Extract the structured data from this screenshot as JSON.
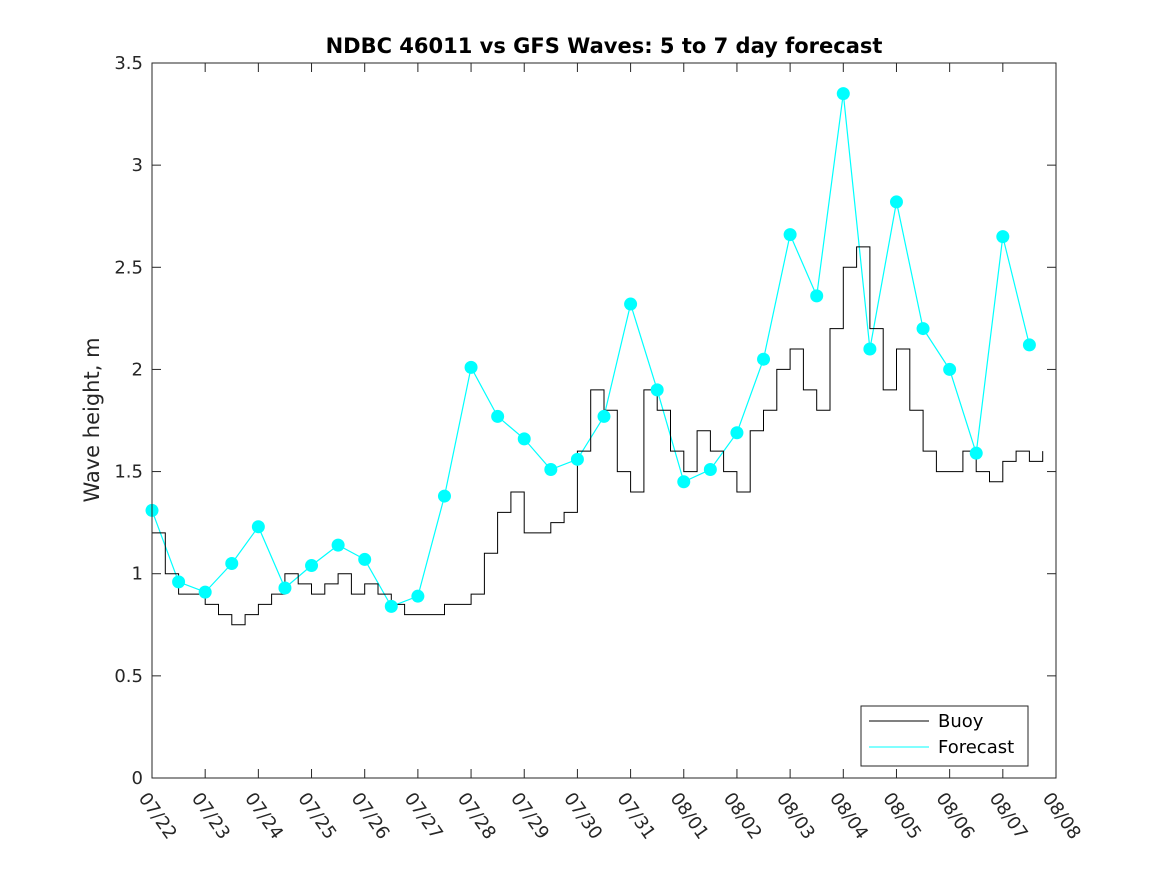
{
  "chart_data": {
    "type": "line",
    "title": "NDBC 46011 vs GFS Waves: 5 to 7 day forecast",
    "xlabel": "",
    "ylabel": "Wave height, m",
    "xlim": [
      "07/22",
      "08/08"
    ],
    "ylim": [
      0,
      3.5
    ],
    "x_ticks": [
      "07/22",
      "07/23",
      "07/24",
      "07/25",
      "07/26",
      "07/27",
      "07/28",
      "07/29",
      "07/30",
      "07/31",
      "08/01",
      "08/02",
      "08/03",
      "08/04",
      "08/05",
      "08/06",
      "08/07",
      "08/08"
    ],
    "y_ticks": [
      0,
      0.5,
      1,
      1.5,
      2,
      2.5,
      3,
      3.5
    ],
    "y_tick_labels": [
      "0",
      "0.5",
      "1",
      "1.5",
      "2",
      "2.5",
      "3",
      "3.5"
    ],
    "grid": false,
    "legend_position": "bottom-right",
    "colors": {
      "buoy": "#000000",
      "forecast": "#00ffff",
      "axes": "#262626"
    },
    "series": [
      {
        "name": "Buoy",
        "style": "line",
        "x": [
          "07/22 00:00",
          "07/22 06:00",
          "07/22 12:00",
          "07/22 18:00",
          "07/23 00:00",
          "07/23 06:00",
          "07/23 12:00",
          "07/23 18:00",
          "07/24 00:00",
          "07/24 06:00",
          "07/24 12:00",
          "07/24 18:00",
          "07/25 00:00",
          "07/25 06:00",
          "07/25 12:00",
          "07/25 18:00",
          "07/26 00:00",
          "07/26 06:00",
          "07/26 12:00",
          "07/26 18:00",
          "07/27 00:00",
          "07/27 06:00",
          "07/27 12:00",
          "07/27 18:00",
          "07/28 00:00",
          "07/28 06:00",
          "07/28 12:00",
          "07/28 18:00",
          "07/29 00:00",
          "07/29 06:00",
          "07/29 12:00",
          "07/29 18:00",
          "07/30 00:00",
          "07/30 06:00",
          "07/30 12:00",
          "07/30 18:00",
          "07/31 00:00",
          "07/31 06:00",
          "07/31 12:00",
          "07/31 18:00",
          "08/01 00:00",
          "08/01 06:00",
          "08/01 12:00",
          "08/01 18:00",
          "08/02 00:00",
          "08/02 06:00",
          "08/02 12:00",
          "08/02 18:00",
          "08/03 00:00",
          "08/03 06:00",
          "08/03 12:00",
          "08/03 18:00",
          "08/04 00:00",
          "08/04 06:00",
          "08/04 12:00",
          "08/04 18:00",
          "08/05 00:00",
          "08/05 06:00",
          "08/05 12:00",
          "08/05 18:00",
          "08/06 00:00",
          "08/06 06:00",
          "08/06 12:00",
          "08/06 18:00",
          "08/07 00:00",
          "08/07 06:00",
          "08/07 12:00",
          "08/07 18:00"
        ],
        "values": [
          1.2,
          1.0,
          0.9,
          0.9,
          0.85,
          0.8,
          0.75,
          0.8,
          0.85,
          0.9,
          1.0,
          0.95,
          0.9,
          0.95,
          1.0,
          0.9,
          0.95,
          0.9,
          0.85,
          0.8,
          0.8,
          0.8,
          0.85,
          0.85,
          0.9,
          1.1,
          1.3,
          1.4,
          1.2,
          1.2,
          1.25,
          1.3,
          1.6,
          1.9,
          1.8,
          1.5,
          1.4,
          1.9,
          1.8,
          1.6,
          1.5,
          1.7,
          1.6,
          1.5,
          1.4,
          1.7,
          1.8,
          2.0,
          2.1,
          1.9,
          1.8,
          2.2,
          2.5,
          2.6,
          2.2,
          1.9,
          2.1,
          1.8,
          1.6,
          1.5,
          1.5,
          1.6,
          1.5,
          1.45,
          1.55,
          1.6,
          1.55,
          1.6
        ]
      },
      {
        "name": "Forecast",
        "style": "line+markers",
        "x": [
          "07/22 00:00",
          "07/22 12:00",
          "07/23 00:00",
          "07/23 12:00",
          "07/24 00:00",
          "07/24 12:00",
          "07/25 00:00",
          "07/25 12:00",
          "07/26 00:00",
          "07/26 12:00",
          "07/27 00:00",
          "07/27 12:00",
          "07/28 00:00",
          "07/28 12:00",
          "07/29 00:00",
          "07/29 12:00",
          "07/30 00:00",
          "07/30 12:00",
          "07/31 00:00",
          "07/31 12:00",
          "08/01 00:00",
          "08/01 12:00",
          "08/02 00:00",
          "08/02 12:00",
          "08/03 00:00",
          "08/03 12:00",
          "08/04 00:00",
          "08/04 12:00",
          "08/05 00:00",
          "08/05 12:00",
          "08/06 00:00",
          "08/06 12:00",
          "08/07 00:00",
          "08/07 12:00"
        ],
        "values": [
          1.31,
          0.96,
          0.91,
          1.05,
          1.23,
          0.93,
          1.04,
          1.14,
          1.07,
          0.84,
          0.89,
          1.38,
          2.01,
          1.77,
          1.66,
          1.51,
          1.56,
          1.77,
          2.32,
          1.9,
          1.45,
          1.51,
          1.69,
          2.05,
          2.66,
          2.36,
          3.35,
          2.1,
          2.82,
          2.2,
          2.0,
          1.59,
          2.65,
          2.12
        ]
      }
    ],
    "legend": [
      {
        "label": "Buoy",
        "color": "#000000"
      },
      {
        "label": "Forecast",
        "color": "#00ffff"
      }
    ]
  }
}
